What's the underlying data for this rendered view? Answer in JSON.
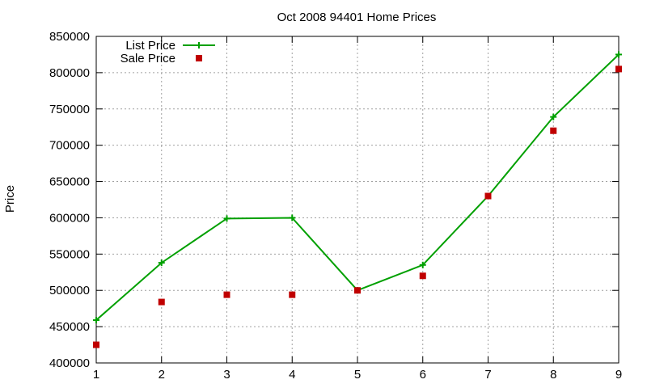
{
  "chart_data": {
    "type": "line",
    "title": "Oct 2008 94401 Home Prices",
    "xlabel": "",
    "ylabel": "Price",
    "x": [
      1,
      2,
      3,
      4,
      5,
      6,
      7,
      8,
      9
    ],
    "xlim": [
      1,
      9
    ],
    "ylim": [
      400000,
      850000
    ],
    "y_ticks": [
      "400000",
      "450000",
      "500000",
      "550000",
      "600000",
      "650000",
      "700000",
      "750000",
      "800000",
      "850000"
    ],
    "x_ticks": [
      "1",
      "2",
      "3",
      "4",
      "5",
      "6",
      "7",
      "8",
      "9"
    ],
    "grid": true,
    "legend_position": "top-left",
    "series": [
      {
        "name": "List Price",
        "style": "line+cross",
        "color": "#00a000",
        "values": [
          459000,
          538000,
          599000,
          600000,
          500000,
          535000,
          630000,
          739000,
          825000
        ]
      },
      {
        "name": "Sale Price",
        "style": "square",
        "color": "#c00000",
        "values": [
          425000,
          484000,
          494000,
          494000,
          500000,
          520000,
          630000,
          720000,
          805000
        ]
      }
    ]
  }
}
